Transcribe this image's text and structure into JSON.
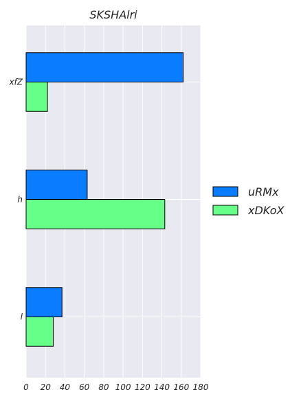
{
  "chart_data": {
    "type": "bar",
    "orientation": "horizontal",
    "title": "SKSHAlri",
    "xlabel": "",
    "ylabel": "",
    "categories": [
      "xfZ",
      "h",
      "l"
    ],
    "series": [
      {
        "name": "uRMx",
        "values": [
          162,
          63,
          37
        ]
      },
      {
        "name": "xDKoX",
        "values": [
          22,
          143,
          28
        ]
      }
    ],
    "xlim": [
      0,
      180
    ],
    "xticks": [
      0,
      20,
      40,
      60,
      80,
      100,
      120,
      140,
      160,
      180
    ],
    "grid": true,
    "legend": "right",
    "colors": {
      "uRMx": "#0a7cff",
      "xDKoX": "#66ff88",
      "plot_background": "#e9e9f2",
      "grid": "#ffffff"
    }
  }
}
